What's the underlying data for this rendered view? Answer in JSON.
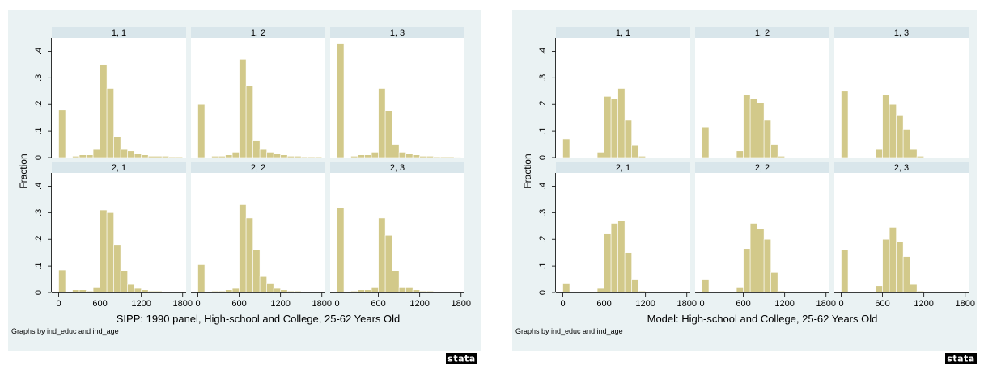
{
  "chart_data": [
    {
      "type": "bar",
      "title": "SIPP: 1990 panel, High-school and College, 25-62 Years Old",
      "note": "Graphs by ind_educ and ind_age",
      "ylabel": "Fraction",
      "xlabel": "",
      "xlim": [
        -100,
        1850
      ],
      "ylim": [
        0,
        0.45
      ],
      "xticks": [
        "0",
        "600",
        "1200",
        "1800"
      ],
      "xtick_values": [
        0,
        600,
        1200,
        1800
      ],
      "yticks": [
        "0",
        ".1",
        ".2",
        ".3",
        ".4"
      ],
      "ytick_values": [
        0,
        0.1,
        0.2,
        0.3,
        0.4
      ],
      "bin_width": 100,
      "bin_starts": [
        0,
        100,
        200,
        300,
        400,
        500,
        600,
        700,
        800,
        900,
        1000,
        1100,
        1200,
        1300,
        1400,
        1500,
        1600,
        1700
      ],
      "grid": false,
      "logo": "stata",
      "panels": [
        {
          "label": "1, 1",
          "values": [
            0.18,
            0.0,
            0.005,
            0.01,
            0.01,
            0.03,
            0.35,
            0.26,
            0.08,
            0.03,
            0.025,
            0.015,
            0.01,
            0.005,
            0.005,
            0.005,
            0.003,
            0.003
          ]
        },
        {
          "label": "1, 2",
          "values": [
            0.2,
            0.0,
            0.005,
            0.005,
            0.01,
            0.02,
            0.37,
            0.27,
            0.065,
            0.03,
            0.02,
            0.015,
            0.01,
            0.005,
            0.005,
            0.003,
            0.003,
            0.003
          ]
        },
        {
          "label": "1, 3",
          "values": [
            0.43,
            0.0,
            0.005,
            0.01,
            0.01,
            0.02,
            0.26,
            0.175,
            0.05,
            0.02,
            0.015,
            0.01,
            0.005,
            0.005,
            0.003,
            0.003,
            0.003,
            0.002
          ]
        },
        {
          "label": "2, 1",
          "values": [
            0.085,
            0.0,
            0.01,
            0.01,
            0.005,
            0.02,
            0.31,
            0.3,
            0.18,
            0.08,
            0.03,
            0.015,
            0.01,
            0.005,
            0.005,
            0.003,
            0.003,
            0.003
          ]
        },
        {
          "label": "2, 2",
          "values": [
            0.105,
            0.0,
            0.005,
            0.005,
            0.01,
            0.015,
            0.33,
            0.28,
            0.16,
            0.06,
            0.035,
            0.015,
            0.01,
            0.005,
            0.005,
            0.003,
            0.003,
            0.003
          ]
        },
        {
          "label": "2, 3",
          "values": [
            0.32,
            0.0,
            0.005,
            0.01,
            0.01,
            0.02,
            0.28,
            0.215,
            0.08,
            0.02,
            0.02,
            0.01,
            0.005,
            0.005,
            0.003,
            0.003,
            0.003,
            0.002
          ]
        }
      ]
    },
    {
      "type": "bar",
      "title": "Model: High-school and College, 25-62 Years Old",
      "note": "Graphs by ind_educ and ind_age",
      "ylabel": "Fraction",
      "xlabel": "",
      "xlim": [
        -100,
        1850
      ],
      "ylim": [
        0,
        0.45
      ],
      "xticks": [
        "0",
        "600",
        "1200",
        "1800"
      ],
      "xtick_values": [
        0,
        600,
        1200,
        1800
      ],
      "yticks": [
        "0",
        ".1",
        ".2",
        ".3",
        ".4"
      ],
      "ytick_values": [
        0,
        0.1,
        0.2,
        0.3,
        0.4
      ],
      "bin_width": 100,
      "bin_starts": [
        0,
        100,
        200,
        300,
        400,
        500,
        600,
        700,
        800,
        900,
        1000,
        1100,
        1200,
        1300,
        1400,
        1500,
        1600,
        1700
      ],
      "grid": false,
      "logo": "stata",
      "panels": [
        {
          "label": "1, 1",
          "values": [
            0.07,
            0.0,
            0.0,
            0.0,
            0.0,
            0.02,
            0.23,
            0.22,
            0.26,
            0.14,
            0.045,
            0.005,
            0.0,
            0.0,
            0.0,
            0.0,
            0.0,
            0.0
          ]
        },
        {
          "label": "1, 2",
          "values": [
            0.115,
            0.0,
            0.0,
            0.0,
            0.0,
            0.025,
            0.235,
            0.22,
            0.205,
            0.14,
            0.05,
            0.005,
            0.0,
            0.0,
            0.0,
            0.0,
            0.0,
            0.0
          ]
        },
        {
          "label": "1, 3",
          "values": [
            0.25,
            0.0,
            0.0,
            0.0,
            0.0,
            0.03,
            0.235,
            0.2,
            0.16,
            0.105,
            0.03,
            0.005,
            0.0,
            0.0,
            0.0,
            0.0,
            0.0,
            0.0
          ]
        },
        {
          "label": "2, 1",
          "values": [
            0.035,
            0.0,
            0.0,
            0.0,
            0.0,
            0.015,
            0.22,
            0.26,
            0.27,
            0.15,
            0.05,
            0.005,
            0.0,
            0.0,
            0.0,
            0.0,
            0.0,
            0.0
          ]
        },
        {
          "label": "2, 2",
          "values": [
            0.05,
            0.0,
            0.0,
            0.0,
            0.0,
            0.02,
            0.165,
            0.26,
            0.24,
            0.2,
            0.075,
            0.005,
            0.0,
            0.0,
            0.0,
            0.0,
            0.0,
            0.0
          ]
        },
        {
          "label": "2, 3",
          "values": [
            0.16,
            0.0,
            0.0,
            0.0,
            0.0,
            0.025,
            0.2,
            0.245,
            0.19,
            0.135,
            0.03,
            0.005,
            0.0,
            0.0,
            0.0,
            0.0,
            0.0,
            0.0
          ]
        }
      ]
    }
  ]
}
